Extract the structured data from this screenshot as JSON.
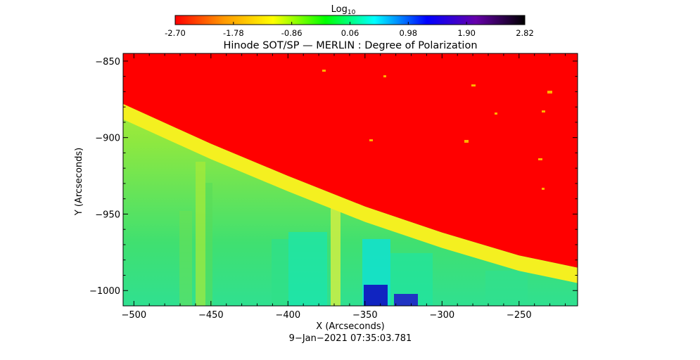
{
  "colorbar": {
    "label": "Log",
    "label_sub": "10",
    "min": -2.7,
    "max": 2.82,
    "ticks": [
      "-2.70",
      "-1.78",
      "-0.86",
      "0.06",
      "0.98",
      "1.90",
      "2.82"
    ],
    "colors": [
      "#ff0000",
      "#ff9900",
      "#ffff00",
      "#00ff00",
      "#00ffff",
      "#0000ff",
      "#6600aa",
      "#000000"
    ]
  },
  "chart_data": {
    "type": "heatmap",
    "title": "Hinode SOT/SP — MERLIN : Degree of Polarization",
    "xlabel": "X (Arcseconds)",
    "ylabel": "Y (Arcseconds)",
    "xlim": [
      -507,
      -212
    ],
    "ylim": [
      -1010,
      -845
    ],
    "x_ticks": [
      -500,
      -450,
      -400,
      -350,
      -300,
      -250
    ],
    "x_tick_labels": [
      "−500",
      "−450",
      "−400",
      "−350",
      "−300",
      "−250"
    ],
    "y_ticks": [
      -850,
      -900,
      -950,
      -1000
    ],
    "y_tick_labels": [
      "−850",
      "−900",
      "−950",
      "−1000"
    ],
    "limb_curve": {
      "x": [
        -507,
        -450,
        -400,
        -350,
        -300,
        -250,
        -212
      ],
      "y": [
        -878,
        -904,
        -925,
        -945,
        -962,
        -977,
        -985
      ]
    },
    "timestamp": "9−Jan−2021 07:35:03.781"
  }
}
